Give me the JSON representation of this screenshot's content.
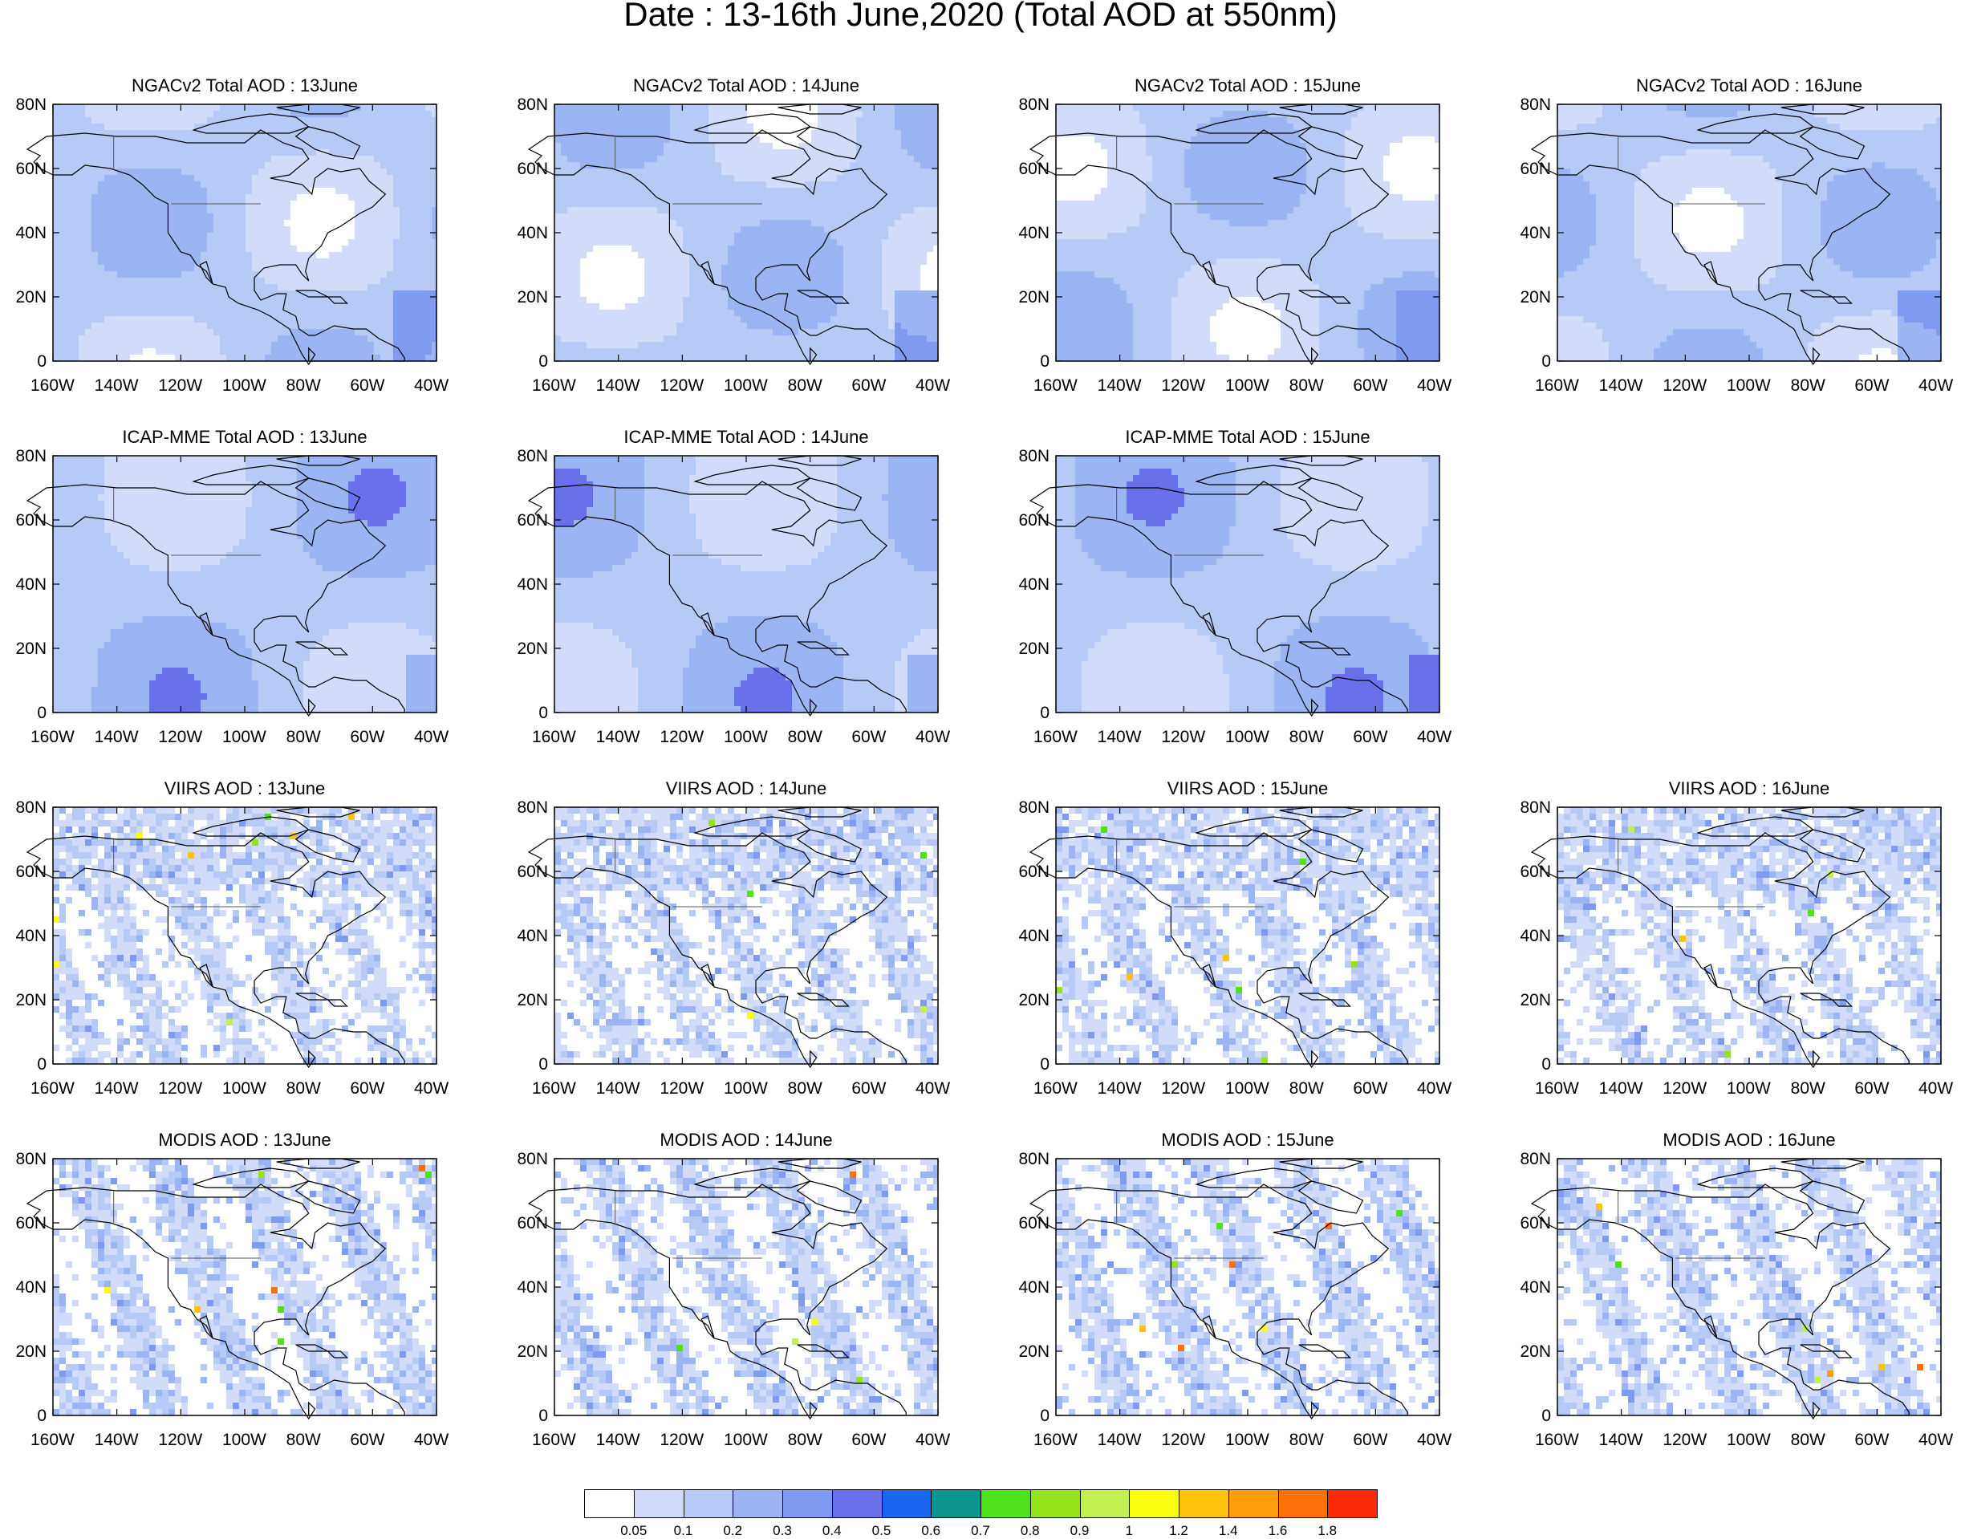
{
  "title": "Date : 13-16th June,2020 (Total AOD at 550nm)",
  "axes": {
    "lat_ticks": [
      "80N",
      "60N",
      "40N",
      "20N",
      "0"
    ],
    "lon_ticks": [
      "160W",
      "140W",
      "120W",
      "100W",
      "80W",
      "60W",
      "40W"
    ],
    "lat_range": [
      0,
      80
    ],
    "lon_range": [
      -160,
      -40
    ]
  },
  "panels": [
    {
      "title": "NGACv2 Total AOD : 13June",
      "row": 0,
      "col": 0,
      "style": "model"
    },
    {
      "title": "NGACv2 Total AOD : 14June",
      "row": 0,
      "col": 1,
      "style": "model"
    },
    {
      "title": "NGACv2 Total AOD : 15June",
      "row": 0,
      "col": 2,
      "style": "model"
    },
    {
      "title": "NGACv2 Total AOD : 16June",
      "row": 0,
      "col": 3,
      "style": "model"
    },
    {
      "title": "ICAP-MME Total AOD : 13June",
      "row": 1,
      "col": 0,
      "style": "ensemble"
    },
    {
      "title": "ICAP-MME Total AOD : 14June",
      "row": 1,
      "col": 1,
      "style": "ensemble"
    },
    {
      "title": "ICAP-MME Total AOD : 15June",
      "row": 1,
      "col": 2,
      "style": "ensemble"
    },
    {
      "title": "VIIRS AOD : 13June",
      "row": 2,
      "col": 0,
      "style": "satellite"
    },
    {
      "title": "VIIRS AOD : 14June",
      "row": 2,
      "col": 1,
      "style": "satellite"
    },
    {
      "title": "VIIRS AOD : 15June",
      "row": 2,
      "col": 2,
      "style": "satellite"
    },
    {
      "title": "VIIRS AOD : 16June",
      "row": 2,
      "col": 3,
      "style": "satellite"
    },
    {
      "title": "MODIS AOD : 13June",
      "row": 3,
      "col": 0,
      "style": "swath"
    },
    {
      "title": "MODIS AOD : 14June",
      "row": 3,
      "col": 1,
      "style": "swath"
    },
    {
      "title": "MODIS AOD : 15June",
      "row": 3,
      "col": 2,
      "style": "swath"
    },
    {
      "title": "MODIS AOD : 16June",
      "row": 3,
      "col": 3,
      "style": "swath"
    }
  ],
  "colorbar": {
    "labels": [
      "0.05",
      "0.1",
      "0.2",
      "0.3",
      "0.4",
      "0.5",
      "0.6",
      "0.7",
      "0.8",
      "0.9",
      "1",
      "1.2",
      "1.4",
      "1.6",
      "1.8"
    ],
    "colors": [
      "#ffffff",
      "#d2dcfa",
      "#b7c9f7",
      "#9bb4f4",
      "#7f9bf0",
      "#6a6fea",
      "#1a66f0",
      "#0a9490",
      "#4fe21a",
      "#93e41a",
      "#c4ef50",
      "#fdfd10",
      "#fdc40a",
      "#fd9e0a",
      "#fd700a",
      "#fd2a0a"
    ]
  }
}
